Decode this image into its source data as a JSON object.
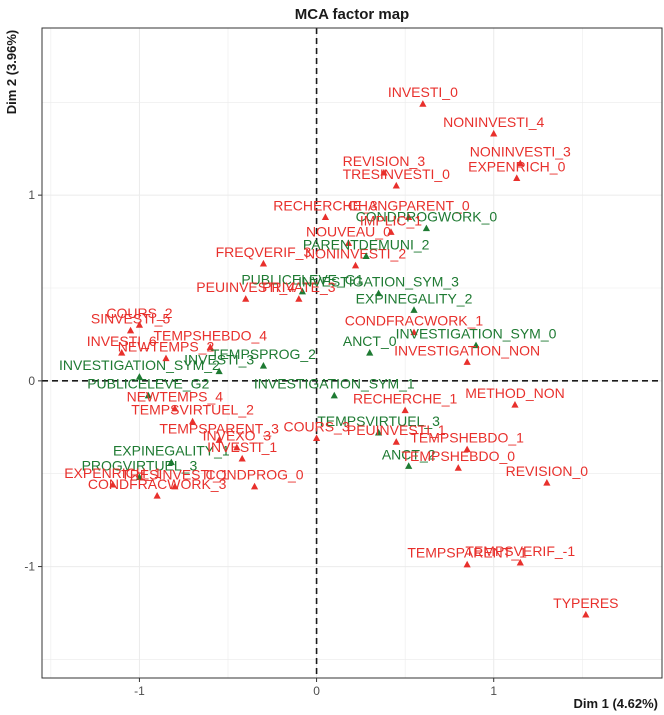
{
  "chart_data": {
    "type": "scatter",
    "title": "MCA factor map",
    "xlabel": "Dim 1 (4.62%)",
    "ylabel": "Dim 2 (3.96%)",
    "xlim": [
      -1.55,
      1.95
    ],
    "ylim": [
      -1.6,
      1.9
    ],
    "xticks": [
      -1,
      0,
      1
    ],
    "yticks": [
      -1,
      0,
      1
    ],
    "grid": true,
    "reference_lines": {
      "x": 0,
      "y": 0
    },
    "colors": {
      "red_group": "#e8302c",
      "green_group": "#1e7a32"
    },
    "points": [
      {
        "label": "INVESTI_0",
        "x": 0.6,
        "y": 1.49,
        "group": "red"
      },
      {
        "label": "NONINVESTI_4",
        "x": 1.0,
        "y": 1.33,
        "group": "red"
      },
      {
        "label": "NONINVESTI_3",
        "x": 1.15,
        "y": 1.17,
        "group": "red"
      },
      {
        "label": "EXPENRICH_0",
        "x": 1.13,
        "y": 1.09,
        "group": "red"
      },
      {
        "label": "REVISION_3",
        "x": 0.38,
        "y": 1.12,
        "group": "red"
      },
      {
        "label": "TRESINVESTI_0",
        "x": 0.45,
        "y": 1.05,
        "group": "red"
      },
      {
        "label": "RECHERCHE_3",
        "x": 0.05,
        "y": 0.88,
        "group": "red"
      },
      {
        "label": "CHANGPARENT_0",
        "x": 0.52,
        "y": 0.88,
        "group": "red"
      },
      {
        "label": "CONDPROGWORK_0",
        "x": 0.62,
        "y": 0.82,
        "group": "green"
      },
      {
        "label": "IMPLIC_1",
        "x": 0.42,
        "y": 0.8,
        "group": "red"
      },
      {
        "label": "NOUVEAU_0",
        "x": 0.18,
        "y": 0.74,
        "group": "red"
      },
      {
        "label": "NONINVESTI_2",
        "x": 0.22,
        "y": 0.62,
        "group": "red"
      },
      {
        "label": "PARENTDEMUNI_2",
        "x": 0.28,
        "y": 0.67,
        "group": "green"
      },
      {
        "label": "FREQVERIF_3",
        "x": -0.3,
        "y": 0.63,
        "group": "red"
      },
      {
        "label": "PUBLICELEVE_G1",
        "x": -0.08,
        "y": 0.48,
        "group": "green"
      },
      {
        "label": "PEUINVESTI_4",
        "x": -0.4,
        "y": 0.44,
        "group": "red"
      },
      {
        "label": "PRIVATE_3",
        "x": -0.1,
        "y": 0.44,
        "group": "red"
      },
      {
        "label": "INVESTIGATION_SYM_3",
        "x": 0.35,
        "y": 0.47,
        "group": "green"
      },
      {
        "label": "EXPINEGALITY_2",
        "x": 0.55,
        "y": 0.38,
        "group": "green"
      },
      {
        "label": "COURS_2",
        "x": -1.0,
        "y": 0.3,
        "group": "red"
      },
      {
        "label": "SINVESTI_5",
        "x": -1.05,
        "y": 0.27,
        "group": "red"
      },
      {
        "label": "CONDFRACWORK_1",
        "x": 0.55,
        "y": 0.26,
        "group": "red"
      },
      {
        "label": "INVESTI_6",
        "x": -1.1,
        "y": 0.15,
        "group": "red"
      },
      {
        "label": "INVESTIGATION_SYM_0",
        "x": 0.9,
        "y": 0.19,
        "group": "green"
      },
      {
        "label": "INVESTIGATION_NON",
        "x": 0.85,
        "y": 0.1,
        "group": "red"
      },
      {
        "label": "INVESTIGATION_SYM_1",
        "x": 0.1,
        "y": -0.08,
        "group": "green"
      },
      {
        "label": "METHOD_NON",
        "x": 1.12,
        "y": -0.13,
        "group": "red"
      },
      {
        "label": "RECHERCHE_1",
        "x": 0.5,
        "y": -0.16,
        "group": "red"
      },
      {
        "label": "TEMPSVIRTUEL_3",
        "x": 0.35,
        "y": -0.28,
        "group": "green"
      },
      {
        "label": "COURS_3",
        "x": 0.0,
        "y": -0.31,
        "group": "red"
      },
      {
        "label": "PEUINVESTI_1",
        "x": 0.45,
        "y": -0.33,
        "group": "red"
      },
      {
        "label": "TEMPSHEBDO_1",
        "x": 0.85,
        "y": -0.37,
        "group": "red"
      },
      {
        "label": "ANCT_2",
        "x": 0.52,
        "y": -0.46,
        "group": "green"
      },
      {
        "label": "TEMPSHEBDO_0",
        "x": 0.8,
        "y": -0.47,
        "group": "red"
      },
      {
        "label": "REVISION_0",
        "x": 1.3,
        "y": -0.55,
        "group": "red"
      },
      {
        "label": "EXPINEGALITY_1",
        "x": -0.82,
        "y": -0.44,
        "group": "green"
      },
      {
        "label": "INVESTI_1",
        "x": -0.42,
        "y": -0.42,
        "group": "red"
      },
      {
        "label": "PROGVIRTUEL_3",
        "x": -1.0,
        "y": -0.52,
        "group": "green"
      },
      {
        "label": "EXPENRICH_1",
        "x": -1.15,
        "y": -0.56,
        "group": "red"
      },
      {
        "label": "TRESINVESTI_1",
        "x": -0.8,
        "y": -0.57,
        "group": "red"
      },
      {
        "label": "CONDPROG_0",
        "x": -0.35,
        "y": -0.57,
        "group": "red"
      },
      {
        "label": "CONDFRACWORK_3",
        "x": -0.9,
        "y": -0.62,
        "group": "red"
      },
      {
        "label": "TEMPSPARENT_1",
        "x": 0.85,
        "y": -0.99,
        "group": "red"
      },
      {
        "label": "TEMPSVERIF_-1",
        "x": 1.15,
        "y": -0.98,
        "group": "red"
      },
      {
        "label": "TYPERES",
        "x": 1.52,
        "y": -1.26,
        "group": "red"
      },
      {
        "label": "INVESTIGATION_SYM_2",
        "x": -1.0,
        "y": 0.02,
        "group": "green"
      },
      {
        "label": "PUBLICELEVE_G2",
        "x": -0.95,
        "y": -0.08,
        "group": "green"
      },
      {
        "label": "NEWTEMPS_2",
        "x": -0.85,
        "y": 0.12,
        "group": "red"
      },
      {
        "label": "TEMPSHEBDO_4",
        "x": -0.6,
        "y": 0.18,
        "group": "red"
      },
      {
        "label": "INVESTI_3",
        "x": -0.55,
        "y": 0.05,
        "group": "green"
      },
      {
        "label": "TEMPSVIRTUEL_2",
        "x": -0.7,
        "y": -0.22,
        "group": "red"
      },
      {
        "label": "NEWTEMPS_4",
        "x": -0.8,
        "y": -0.15,
        "group": "red"
      },
      {
        "label": "TEMPSPARENT_3",
        "x": -0.55,
        "y": -0.32,
        "group": "red"
      },
      {
        "label": "INVEXO_3",
        "x": -0.45,
        "y": -0.36,
        "group": "red"
      },
      {
        "label": "ANCT_0",
        "x": 0.3,
        "y": 0.15,
        "group": "green"
      },
      {
        "label": "TEMPSPROG_2",
        "x": -0.3,
        "y": 0.08,
        "group": "green"
      }
    ]
  }
}
